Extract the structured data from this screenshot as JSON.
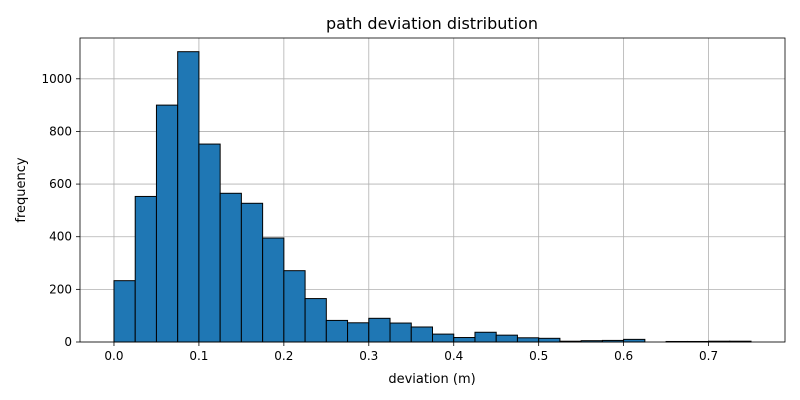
{
  "colors": {
    "bar_fill": "#1f77b4",
    "bar_edge": "#000000",
    "grid": "#b0b0b0"
  },
  "chart_data": {
    "type": "bar",
    "title": "path deviation distribution",
    "xlabel": "deviation (m)",
    "ylabel": "frequency",
    "grid": true,
    "xlim": [
      -0.04,
      0.79
    ],
    "ylim": [
      0,
      1155
    ],
    "xticks": [
      0.0,
      0.1,
      0.2,
      0.3,
      0.4,
      0.5,
      0.6,
      0.7
    ],
    "xtick_labels": [
      "0.0",
      "0.1",
      "0.2",
      "0.3",
      "0.4",
      "0.5",
      "0.6",
      "0.7"
    ],
    "yticks": [
      0,
      200,
      400,
      600,
      800,
      1000
    ],
    "ytick_labels": [
      "0",
      "200",
      "400",
      "600",
      "800",
      "1000"
    ],
    "bin_edges": [
      0.0,
      0.025,
      0.05,
      0.075,
      0.1,
      0.125,
      0.15,
      0.175,
      0.2,
      0.225,
      0.25,
      0.275,
      0.3,
      0.325,
      0.35,
      0.375,
      0.4,
      0.425,
      0.45,
      0.475,
      0.5,
      0.525,
      0.55,
      0.575,
      0.6,
      0.625,
      0.65,
      0.675,
      0.7,
      0.725,
      0.75
    ],
    "values": [
      233,
      553,
      900,
      1103,
      752,
      565,
      527,
      395,
      271,
      165,
      82,
      73,
      90,
      72,
      57,
      30,
      17,
      37,
      26,
      16,
      14,
      3,
      5,
      6,
      10,
      0,
      2,
      2,
      3,
      3
    ]
  }
}
